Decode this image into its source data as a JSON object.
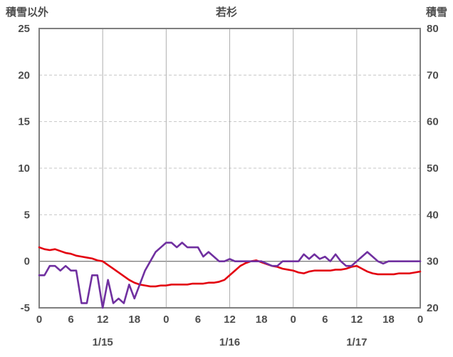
{
  "header": {
    "left_axis_title": "積雪以外",
    "chart_title": "若杉",
    "right_axis_title": "積雪"
  },
  "chart_data": {
    "type": "line",
    "title": "若杉",
    "grid": true,
    "legend": "none",
    "left_axis": {
      "label": "積雪以外",
      "min": -5,
      "max": 25,
      "tick_step": 5,
      "ticks": [
        25,
        20,
        15,
        10,
        5,
        0,
        -5
      ]
    },
    "right_axis": {
      "label": "積雪",
      "min": 20,
      "max": 80,
      "tick_step": 10,
      "ticks": [
        80,
        70,
        60,
        50,
        40,
        30,
        20
      ]
    },
    "x_axis": {
      "hours_total": 72,
      "tick_step_hours": 6,
      "tick_labels": [
        "0",
        "6",
        "12",
        "18",
        "0",
        "6",
        "12",
        "18",
        "0",
        "6",
        "12",
        "18",
        "0"
      ],
      "day_labels": [
        "1/15",
        "1/16",
        "1/17"
      ],
      "day_label_center_hours": [
        12,
        36,
        60
      ],
      "vertical_gridline_hours": [
        12,
        24,
        36,
        48,
        60
      ]
    },
    "series": [
      {
        "id": "non-snow-series",
        "name": "積雪以外",
        "axis": "left",
        "color": "#e3000f",
        "x_start_hour": 0,
        "x_step_hours": 1,
        "values": [
          1.5,
          1.3,
          1.2,
          1.3,
          1.1,
          0.9,
          0.8,
          0.6,
          0.5,
          0.4,
          0.3,
          0.1,
          0.0,
          -0.4,
          -0.8,
          -1.2,
          -1.6,
          -2.0,
          -2.3,
          -2.5,
          -2.6,
          -2.7,
          -2.7,
          -2.6,
          -2.6,
          -2.5,
          -2.5,
          -2.5,
          -2.5,
          -2.4,
          -2.4,
          -2.4,
          -2.3,
          -2.3,
          -2.2,
          -2.0,
          -1.5,
          -1.0,
          -0.5,
          -0.2,
          0.0,
          0.1,
          -0.1,
          -0.3,
          -0.5,
          -0.6,
          -0.8,
          -0.9,
          -1.0,
          -1.2,
          -1.3,
          -1.1,
          -1.0,
          -1.0,
          -1.0,
          -1.0,
          -0.9,
          -0.9,
          -0.8,
          -0.6,
          -0.5,
          -0.8,
          -1.1,
          -1.3,
          -1.4,
          -1.4,
          -1.4,
          -1.4,
          -1.3,
          -1.3,
          -1.3,
          -1.2,
          -1.1
        ]
      },
      {
        "id": "snow-series",
        "name": "積雪",
        "axis": "right",
        "color": "#7030a0",
        "x_start_hour": 0,
        "x_step_hours": 1,
        "values": [
          27,
          27,
          29,
          29,
          28,
          29,
          28,
          28,
          21,
          21,
          27,
          27,
          20,
          26,
          21,
          22,
          21,
          25,
          22,
          25,
          28,
          30,
          32,
          33,
          34,
          34,
          33,
          34,
          33,
          33,
          33,
          31,
          32,
          31,
          30,
          30,
          30.5,
          30,
          30,
          30,
          30,
          30,
          30,
          29.5,
          29,
          29,
          30,
          30,
          30,
          30,
          31.5,
          30.5,
          31.5,
          30.5,
          31,
          30,
          31.5,
          30,
          29,
          29,
          30,
          31,
          32,
          31,
          30,
          29.5,
          30,
          30,
          30,
          30,
          30,
          30,
          30
        ]
      }
    ],
    "style_colors": {
      "plot_border": "#7f7f7f",
      "zero_line": "#808080",
      "dashed_gridline": "#c6c6c6",
      "vertical_gridline": "#aeaeae",
      "axis_text": "#4d4d4d"
    }
  }
}
